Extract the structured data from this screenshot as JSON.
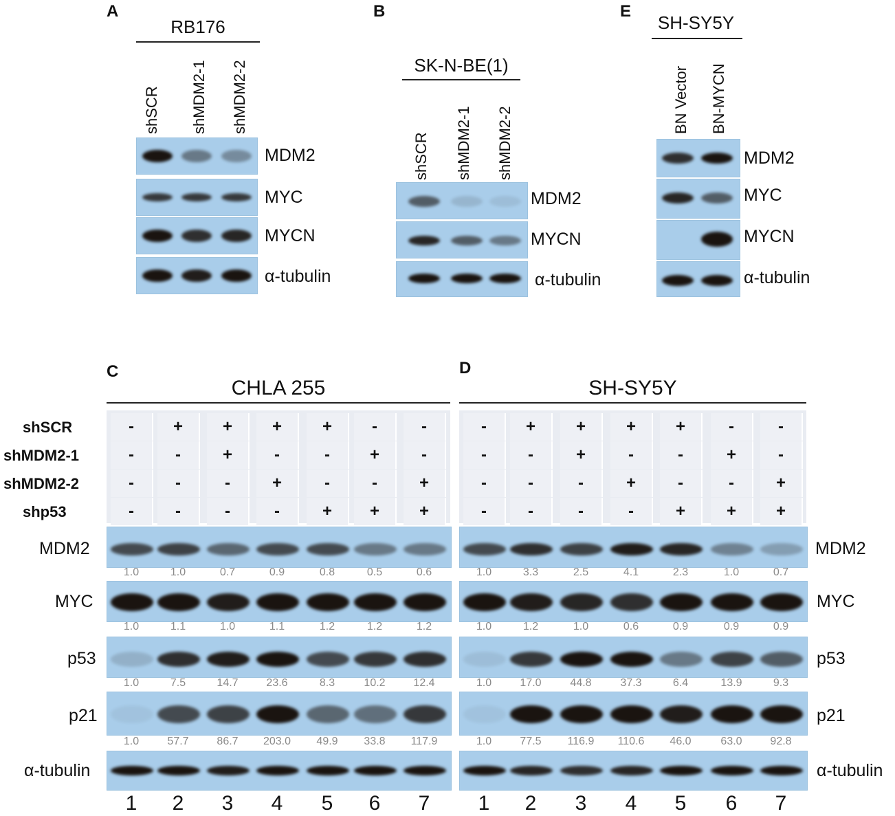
{
  "panels": {
    "A": {
      "letter": "A",
      "cell_line": "RB176",
      "lanes": [
        "shSCR",
        "shMDM2-1",
        "shMDM2-2"
      ],
      "proteins": [
        "MDM2",
        "MYC",
        "MYCN",
        "α-tubulin"
      ]
    },
    "B": {
      "letter": "B",
      "cell_line": "SK-N-BE(1)",
      "lanes": [
        "shSCR",
        "shMDM2-1",
        "shMDM2-2"
      ],
      "proteins": [
        "MDM2",
        "MYCN",
        "α-tubulin"
      ]
    },
    "E": {
      "letter": "E",
      "cell_line": "SH-SY5Y",
      "lanes": [
        "BN Vector",
        "BN-MYCN"
      ],
      "proteins": [
        "MDM2",
        "MYC",
        "MYCN",
        "α-tubulin"
      ]
    },
    "C": {
      "letter": "C",
      "cell_line": "CHLA 255",
      "proteins": [
        "MDM2",
        "MYC",
        "p53",
        "p21",
        "α-tubulin"
      ],
      "quant": {
        "MDM2": [
          "1.0",
          "1.0",
          "0.7",
          "0.9",
          "0.8",
          "0.5",
          "0.6"
        ],
        "MYC": [
          "1.0",
          "1.1",
          "1.0",
          "1.1",
          "1.2",
          "1.2",
          "1.2"
        ],
        "p53": [
          "1.0",
          "7.5",
          "14.7",
          "23.6",
          "8.3",
          "10.2",
          "12.4"
        ],
        "p21": [
          "1.0",
          "57.7",
          "86.7",
          "203.0",
          "49.9",
          "33.8",
          "117.9"
        ]
      }
    },
    "D": {
      "letter": "D",
      "cell_line": "SH-SY5Y",
      "proteins": [
        "MDM2",
        "MYC",
        "p53",
        "p21",
        "α-tubulin"
      ],
      "quant": {
        "MDM2": [
          "1.0",
          "3.3",
          "2.5",
          "4.1",
          "2.3",
          "1.0",
          "0.7"
        ],
        "MYC": [
          "1.0",
          "1.2",
          "1.0",
          "0.6",
          "0.9",
          "0.9",
          "0.9"
        ],
        "p53": [
          "1.0",
          "17.0",
          "44.8",
          "37.3",
          "6.4",
          "13.9",
          "9.3"
        ],
        "p21": [
          "1.0",
          "77.5",
          "116.9",
          "110.6",
          "46.0",
          "63.0",
          "92.8"
        ]
      }
    }
  },
  "conditions": {
    "labels": [
      "shSCR",
      "shMDM2-1",
      "shMDM2-2",
      "shp53"
    ],
    "rows": [
      [
        "-",
        "+",
        "+",
        "+",
        "+",
        "-",
        "-"
      ],
      [
        "-",
        "-",
        "+",
        "-",
        "-",
        "+",
        "-"
      ],
      [
        "-",
        "-",
        "-",
        "+",
        "-",
        "-",
        "+"
      ],
      [
        "-",
        "-",
        "-",
        "-",
        "+",
        "+",
        "+"
      ]
    ]
  },
  "lane_numbers": [
    "1",
    "2",
    "3",
    "4",
    "5",
    "6",
    "7"
  ],
  "colors": {
    "blot_bg": "#a9cdea",
    "band": "#1a1410",
    "quant_text": "#8a8a8a",
    "matrix_bg": "#e9ecf2"
  }
}
